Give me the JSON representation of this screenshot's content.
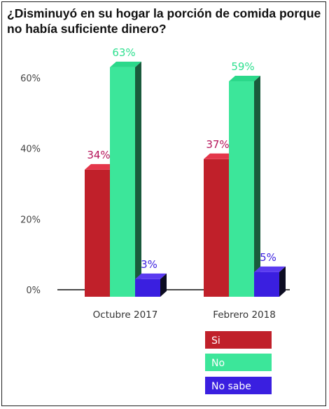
{
  "chart_data": {
    "type": "bar",
    "title": "¿Disminuyó en su hogar la porción de comida porque no había suficiente dinero?",
    "categories": [
      "Octubre 2017",
      "Febrero 2018"
    ],
    "series": [
      {
        "name": "Si",
        "values": [
          34,
          37
        ],
        "labels": [
          "34%",
          "37%"
        ],
        "color": "#c0202a",
        "top_color": "#e4364a",
        "side_color": "#7a1018",
        "label_color": "#b5145a"
      },
      {
        "name": "No",
        "values": [
          63,
          59
        ],
        "labels": [
          "63%",
          "59%"
        ],
        "color": "#3ce69a",
        "top_color": "#2bd88a",
        "side_color": "#1a5a3c",
        "label_color": "#2fe090"
      },
      {
        "name": "No sabe",
        "values": [
          3,
          5
        ],
        "labels": [
          "3%",
          "5%"
        ],
        "color": "#3a1fe0",
        "top_color": "#5a3af0",
        "side_color": "#0c0c22",
        "label_color": "#3a1fe0"
      }
    ],
    "yticks": [
      "0%",
      "20%",
      "40%",
      "60%"
    ],
    "ylim": [
      0,
      60
    ],
    "grid": false,
    "legend_position": "bottom-right"
  }
}
